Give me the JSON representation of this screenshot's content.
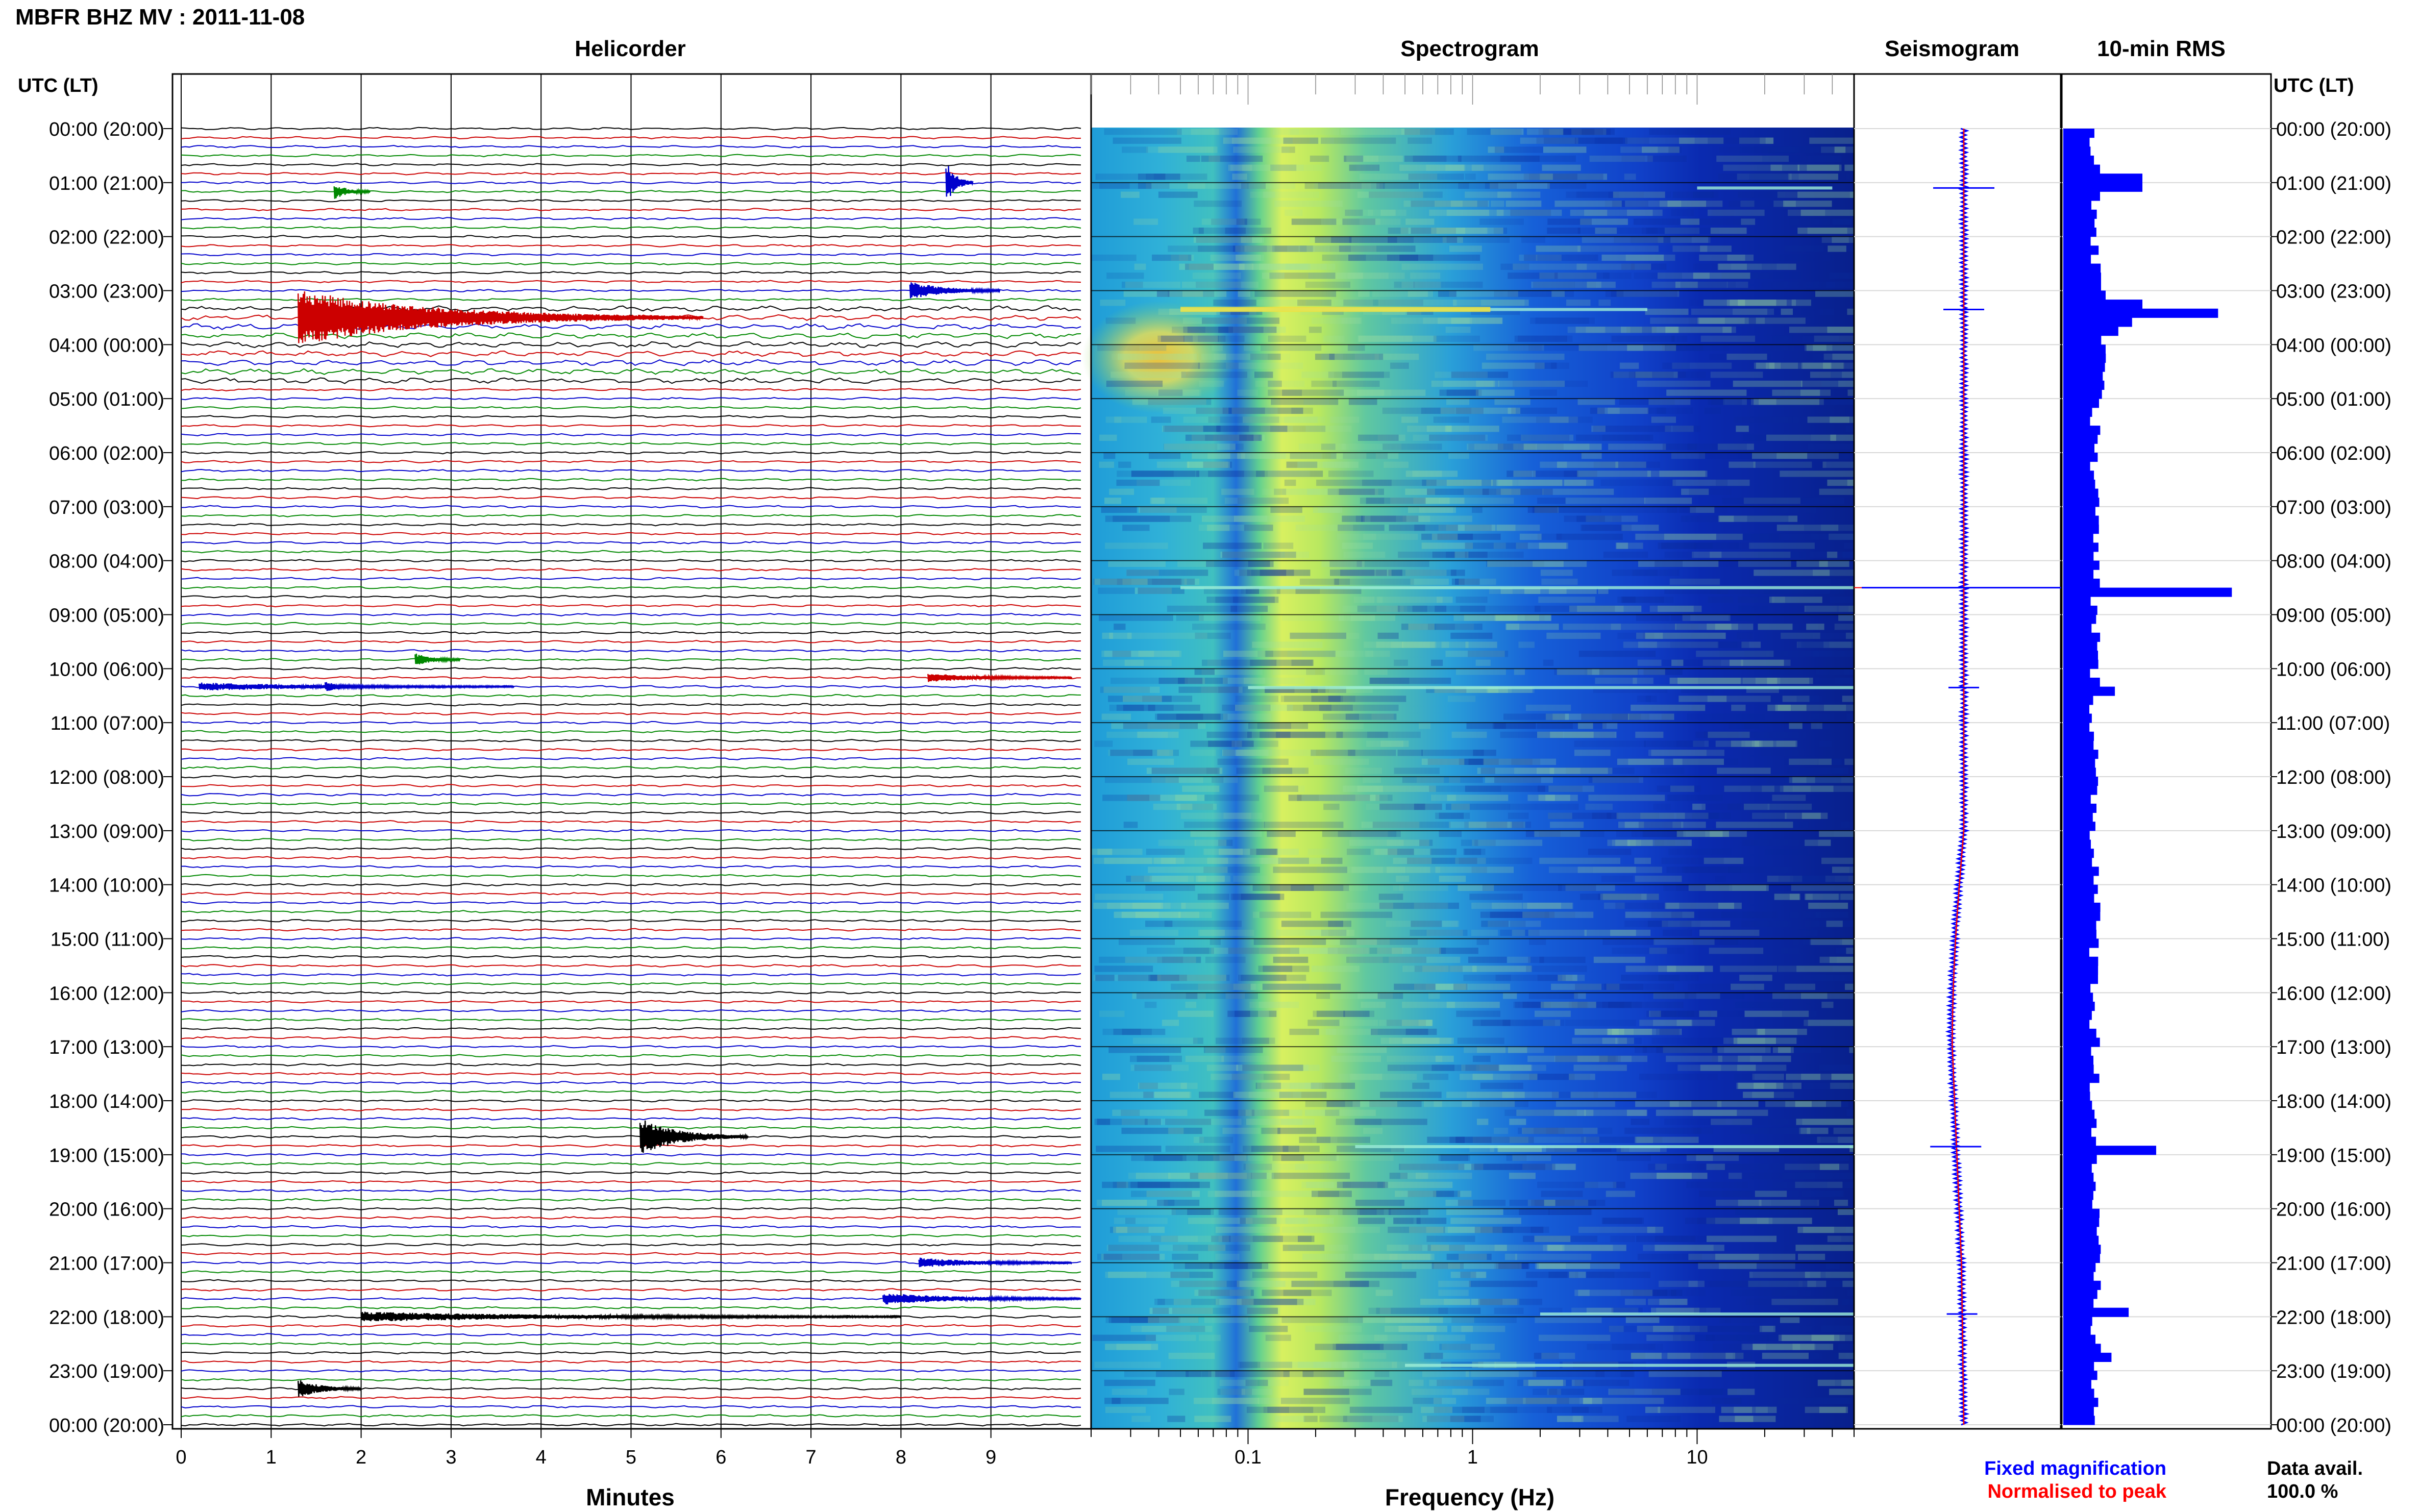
{
  "page": {
    "title": "MBFR BHZ MV : 2011-11-08"
  },
  "panels": {
    "helicorder": "Helicorder",
    "spectrogram": "Spectrogram",
    "seismogram": "Seismogram",
    "rms": "10-min RMS"
  },
  "axes": {
    "time_header_left": "UTC (LT)",
    "time_header_right": "UTC (LT)",
    "minutes_label": "Minutes",
    "frequency_label": "Frequency (Hz)"
  },
  "legend": {
    "fixed": "Fixed magnification",
    "normalised": "Normalised to peak",
    "fixed_color": "#0000ff",
    "normalised_color": "#ff0000"
  },
  "availability": {
    "label": "Data avail.",
    "value": "100.0 %"
  },
  "colors": {
    "trace_cycle": [
      "#000000",
      "#cc0000",
      "#0000cc",
      "#008800"
    ],
    "rms_bar": "#0000ff",
    "spectrogram_low": "#00008b",
    "spectrogram_mid": "#2fa8d8",
    "spectrogram_high": "#f0f040"
  },
  "chart_data": [
    {
      "type": "line",
      "name": "helicorder",
      "title": "Helicorder",
      "xlabel": "Minutes",
      "x_ticks": [
        "0",
        "1",
        "2",
        "3",
        "4",
        "5",
        "6",
        "7",
        "8",
        "9"
      ],
      "xlim": [
        0,
        10
      ],
      "time_labels_utc_lt": [
        "00:00 (20:00)",
        "01:00 (21:00)",
        "02:00 (22:00)",
        "03:00 (23:00)",
        "04:00 (00:00)",
        "05:00 (01:00)",
        "06:00 (02:00)",
        "07:00 (03:00)",
        "08:00 (04:00)",
        "09:00 (05:00)",
        "10:00 (06:00)",
        "11:00 (07:00)",
        "12:00 (08:00)",
        "13:00 (09:00)",
        "14:00 (10:00)",
        "15:00 (11:00)",
        "16:00 (12:00)",
        "17:00 (13:00)",
        "18:00 (14:00)",
        "19:00 (15:00)",
        "20:00 (16:00)",
        "21:00 (17:00)",
        "22:00 (18:00)",
        "23:00 (19:00)",
        "00:00 (20:00)"
      ],
      "traces_per_hour": 6,
      "minutes_per_trace": 10,
      "events": [
        {
          "hour": 3.45,
          "minute": 1.3,
          "amp": 9,
          "decay": 4.5
        },
        {
          "hour": 0.97,
          "minute": 8.5,
          "amp": 7,
          "decay": 0.3
        },
        {
          "hour": 3.05,
          "minute": 8.1,
          "amp": 3,
          "decay": 1.0
        },
        {
          "hour": 1.1,
          "minute": 1.7,
          "amp": 2.5,
          "decay": 0.4
        },
        {
          "hour": 10.3,
          "minute": 0.2,
          "amp": 1.2,
          "decay": 3.5
        },
        {
          "hour": 10.3,
          "minute": 1.6,
          "amp": 1.5,
          "decay": 0.6
        },
        {
          "hour": 9.8,
          "minute": 2.6,
          "amp": 2,
          "decay": 0.5
        },
        {
          "hour": 18.7,
          "minute": 5.1,
          "amp": 6,
          "decay": 1.2
        },
        {
          "hour": 21.95,
          "minute": 2.0,
          "amp": 1.5,
          "decay": 6
        },
        {
          "hour": 21.7,
          "minute": 7.8,
          "amp": 1.8,
          "decay": 2.2
        },
        {
          "hour": 21.0,
          "minute": 8.2,
          "amp": 1.6,
          "decay": 1.7
        },
        {
          "hour": 23.35,
          "minute": 1.3,
          "amp": 3,
          "decay": 0.7
        },
        {
          "hour": 10.1,
          "minute": 8.3,
          "amp": 1.3,
          "decay": 1.6
        }
      ]
    },
    {
      "type": "heatmap",
      "name": "spectrogram",
      "title": "Spectrogram",
      "xlabel": "Frequency (Hz)",
      "x_scale": "log",
      "xlim": [
        0.02,
        50
      ],
      "x_ticks": [
        "0.1",
        "1",
        "10"
      ],
      "peak_frequency_band_hz": [
        0.13,
        0.35
      ],
      "strong_energy_period": {
        "hour_start": 3.3,
        "hour_end": 4.6,
        "freq_range_hz": [
          0.02,
          0.2
        ]
      },
      "spectral_lines": [
        {
          "hour": 1.1,
          "freq_range_hz": [
            10,
            40
          ]
        },
        {
          "hour": 3.35,
          "freq_range_hz": [
            0.05,
            6
          ]
        },
        {
          "hour": 8.5,
          "freq_range_hz": [
            0.05,
            50
          ]
        },
        {
          "hour": 10.35,
          "freq_range_hz": [
            0.1,
            50
          ]
        },
        {
          "hour": 18.85,
          "freq_range_hz": [
            0.3,
            50
          ]
        },
        {
          "hour": 21.95,
          "freq_range_hz": [
            2,
            50
          ]
        },
        {
          "hour": 22.9,
          "freq_range_hz": [
            0.5,
            50
          ]
        }
      ]
    },
    {
      "type": "line",
      "name": "seismogram",
      "title": "Seismogram",
      "series": [
        {
          "name": "Fixed magnification"
        },
        {
          "name": "Normalised to peak"
        }
      ],
      "spikes": [
        {
          "hour": 1.1,
          "amp": 12
        },
        {
          "hour": 3.35,
          "amp": 8
        },
        {
          "hour": 8.5,
          "amp": 50
        },
        {
          "hour": 10.35,
          "amp": 6
        },
        {
          "hour": 18.85,
          "amp": 10
        },
        {
          "hour": 21.95,
          "amp": 6
        }
      ]
    },
    {
      "type": "bar",
      "name": "rms",
      "title": "10-min RMS",
      "hours": 24,
      "bins_per_hour": 6,
      "base_value": 1.0,
      "peaks": [
        {
          "hour": 1.0,
          "value": 2.3
        },
        {
          "hour": 3.2,
          "value": 2.3
        },
        {
          "hour": 3.4,
          "value": 4.5
        },
        {
          "hour": 3.55,
          "value": 2.0
        },
        {
          "hour": 3.75,
          "value": 1.6
        },
        {
          "hour": 8.55,
          "value": 4.9
        },
        {
          "hour": 10.35,
          "value": 1.5
        },
        {
          "hour": 18.85,
          "value": 2.7
        },
        {
          "hour": 21.95,
          "value": 1.9
        },
        {
          "hour": 22.8,
          "value": 1.4
        }
      ],
      "max_value": 5
    }
  ]
}
